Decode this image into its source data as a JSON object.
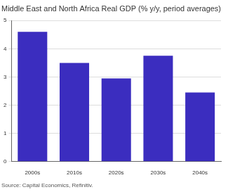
{
  "chart_data": {
    "type": "bar",
    "title": "Middle East and North Africa Real GDP (% y/y, period averages)",
    "source": "Source: Capital Economics, Refinitiv.",
    "categories": [
      "2000s",
      "2010s",
      "2020s",
      "2030s",
      "2040s"
    ],
    "values": [
      4.6,
      3.5,
      2.95,
      3.75,
      2.45
    ],
    "color": "#3b2dbf",
    "ylim": [
      0,
      5
    ],
    "yticks": [
      0,
      1,
      2,
      3,
      4,
      5
    ],
    "grid": true
  }
}
